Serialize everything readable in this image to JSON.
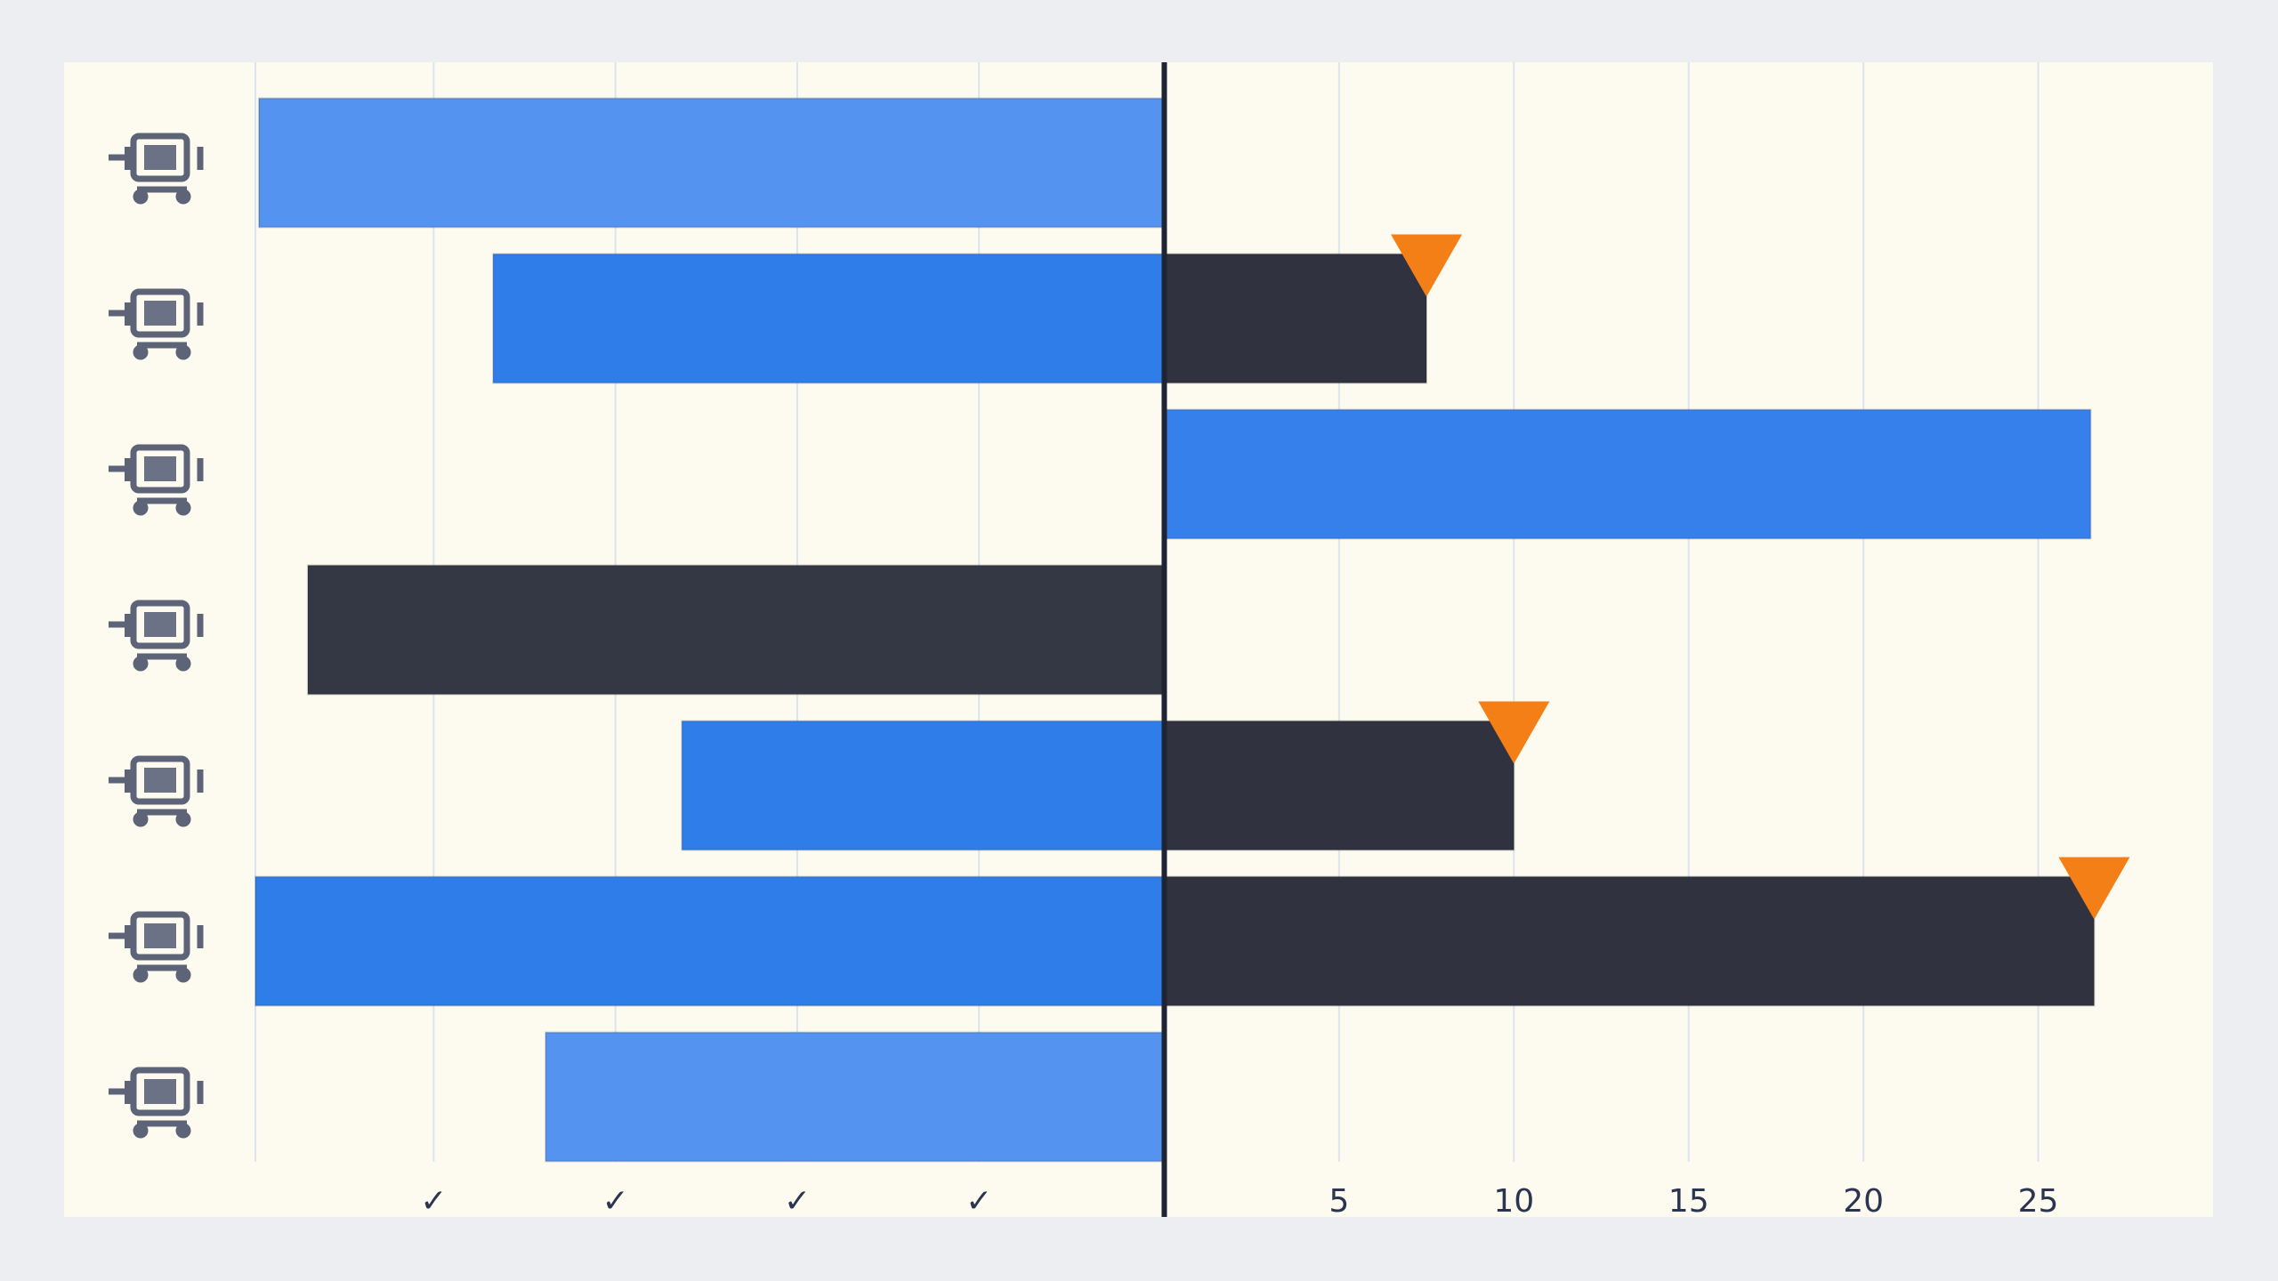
{
  "chart_data": {
    "type": "diverging-bar",
    "categories": [
      null,
      null,
      null,
      null,
      null,
      null,
      null
    ],
    "series": [
      {
        "values": [
          -25.9,
          -19.2,
          null,
          -24.5,
          -13.8,
          -26,
          -17.7
        ],
        "colors": [
          "#5593f0",
          "#2f7de8",
          null,
          "#343844",
          "#2f7de8",
          "#2f7de8",
          "#5593f0"
        ]
      },
      {
        "values": [
          null,
          7.5,
          26.5,
          null,
          10,
          26.6,
          null
        ],
        "colors": [
          null,
          "#30333f",
          "#3580ea",
          null,
          "#30333f",
          "#30333f",
          null
        ]
      },
      {
        "values": [
          null,
          7.5,
          null,
          null,
          10,
          26.6,
          null
        ],
        "color": "#f57f17",
        "marker": "triangle"
      }
    ],
    "xlim": [
      -26,
      30
    ],
    "xticks": [
      {
        "value": -20.9,
        "label": "✓"
      },
      {
        "value": -15.7,
        "label": "✓"
      },
      {
        "value": -10.5,
        "label": "✓"
      },
      {
        "value": -5.3,
        "label": "✓"
      },
      5,
      10,
      15,
      20,
      25
    ],
    "grid": true
  }
}
